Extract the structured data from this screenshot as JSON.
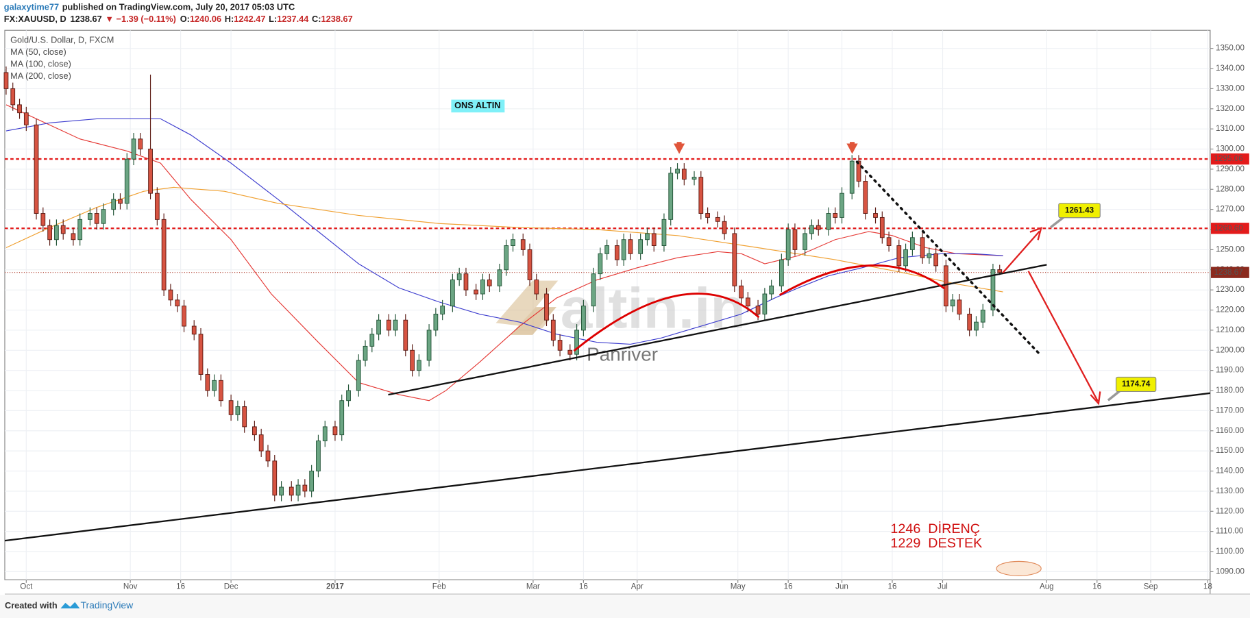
{
  "header": {
    "author": "galaxytime77",
    "published": "published on TradingView.com, July 20, 2017 05:03 UTC",
    "symbol": "FX:XAUUSD, D",
    "price": "1238.67",
    "change": "▼ −1.39 (−0.11%)",
    "ohlc": [
      {
        "key": "O:",
        "value": "1240.06"
      },
      {
        "key": "H:",
        "value": "1242.47"
      },
      {
        "key": "L:",
        "value": "1237.44"
      },
      {
        "key": "C:",
        "value": "1238.67"
      }
    ]
  },
  "footer": {
    "created": "Created with",
    "brand": "TradingView"
  },
  "chart_data": {
    "type": "candlestick",
    "legend_title": "Gold/U.S. Dollar, D, FXCM",
    "grid": true,
    "up_color": "#6ba583",
    "down_color": "#d75442",
    "up_border": "#225437",
    "down_border": "#5b1a13",
    "x": [
      -6,
      -4,
      -2,
      0,
      3,
      5,
      7,
      9,
      11,
      14,
      16,
      19,
      21,
      23,
      26,
      28,
      30,
      32,
      34,
      37,
      39,
      41,
      43,
      45,
      47,
      50,
      52,
      54,
      56,
      58,
      61,
      63,
      65,
      68,
      70,
      72,
      74,
      76,
      79,
      81,
      83,
      85,
      87,
      89,
      92,
      94,
      96,
      99,
      101,
      103,
      105,
      108,
      110,
      113,
      115,
      117,
      120,
      122,
      124,
      127,
      129,
      131,
      134,
      136,
      138,
      141,
      143,
      145,
      148,
      150,
      152,
      155,
      157,
      159,
      162,
      164,
      166,
      169,
      171,
      173,
      176,
      178,
      180,
      183,
      185,
      187,
      190,
      192,
      194,
      196,
      199,
      201,
      203,
      206,
      208,
      211,
      213,
      215,
      218,
      220,
      222,
      225,
      227,
      229,
      232,
      234,
      236,
      239,
      241,
      243,
      246,
      248,
      250,
      253,
      255,
      257,
      260,
      262,
      264,
      267,
      269,
      271,
      274,
      276,
      278,
      281,
      283,
      285,
      288,
      290
    ],
    "open": [
      1338,
      1330,
      1322,
      1318,
      1312,
      1268,
      1262,
      1255,
      1262,
      1258,
      1255,
      1265,
      1268,
      1263,
      1270,
      1275,
      1273,
      1295,
      1305,
      1300,
      1278,
      1265,
      1230,
      1225,
      1222,
      1212,
      1208,
      1188,
      1180,
      1185,
      1175,
      1168,
      1172,
      1162,
      1158,
      1150,
      1145,
      1128,
      1132,
      1128,
      1133,
      1130,
      1140,
      1155,
      1162,
      1158,
      1175,
      1180,
      1195,
      1202,
      1208,
      1215,
      1210,
      1215,
      1200,
      1190,
      1195,
      1210,
      1218,
      1222,
      1235,
      1238,
      1230,
      1228,
      1235,
      1232,
      1240,
      1252,
      1255,
      1250,
      1235,
      1228,
      1215,
      1205,
      1200,
      1198,
      1210,
      1222,
      1238,
      1248,
      1252,
      1245,
      1255,
      1248,
      1255,
      1258,
      1252,
      1265,
      1288,
      1290,
      1285,
      1286,
      1268,
      1266,
      1264,
      1258,
      1232,
      1226,
      1222,
      1218,
      1228,
      1232,
      1245,
      1260,
      1250,
      1258,
      1262,
      1260,
      1268,
      1266,
      1278,
      1294,
      1284,
      1268,
      1266,
      1256,
      1252,
      1242,
      1250,
      1256,
      1246,
      1248,
      1242,
      1222,
      1225,
      1218,
      1210,
      1214,
      1220,
      1240.06
    ],
    "high": [
      1341,
      1333,
      1325,
      1321,
      1315,
      1271,
      1265,
      1265,
      1265,
      1261,
      1268,
      1271,
      1271,
      1273,
      1278,
      1278,
      1298,
      1308,
      1308,
      1337,
      1281,
      1268,
      1233,
      1228,
      1225,
      1215,
      1211,
      1191,
      1188,
      1188,
      1178,
      1175,
      1175,
      1165,
      1161,
      1153,
      1148,
      1135,
      1135,
      1136,
      1136,
      1143,
      1158,
      1165,
      1165,
      1178,
      1183,
      1198,
      1205,
      1211,
      1218,
      1218,
      1218,
      1218,
      1203,
      1198,
      1213,
      1221,
      1225,
      1238,
      1241,
      1241,
      1233,
      1238,
      1238,
      1243,
      1255,
      1258,
      1258,
      1253,
      1238,
      1231,
      1218,
      1208,
      1203,
      1213,
      1225,
      1241,
      1251,
      1255,
      1255,
      1258,
      1258,
      1258,
      1261,
      1261,
      1268,
      1291,
      1293,
      1293,
      1289,
      1289,
      1271,
      1269,
      1267,
      1261,
      1235,
      1229,
      1225,
      1231,
      1235,
      1248,
      1263,
      1263,
      1261,
      1265,
      1265,
      1271,
      1271,
      1281,
      1297,
      1297,
      1287,
      1271,
      1269,
      1259,
      1255,
      1253,
      1259,
      1259,
      1251,
      1251,
      1245,
      1228,
      1228,
      1221,
      1217,
      1223,
      1243,
      1242.47
    ],
    "low": [
      1327,
      1319,
      1315,
      1309,
      1265,
      1259,
      1252,
      1252,
      1255,
      1252,
      1252,
      1262,
      1260,
      1260,
      1267,
      1270,
      1270,
      1292,
      1297,
      1275,
      1262,
      1227,
      1222,
      1219,
      1209,
      1205,
      1185,
      1177,
      1177,
      1172,
      1165,
      1165,
      1159,
      1155,
      1147,
      1142,
      1125,
      1125,
      1125,
      1125,
      1127,
      1127,
      1137,
      1152,
      1155,
      1155,
      1172,
      1177,
      1192,
      1199,
      1205,
      1207,
      1207,
      1197,
      1187,
      1187,
      1192,
      1207,
      1215,
      1219,
      1232,
      1227,
      1225,
      1225,
      1229,
      1229,
      1237,
      1249,
      1247,
      1232,
      1225,
      1212,
      1202,
      1197,
      1195,
      1195,
      1207,
      1219,
      1235,
      1245,
      1242,
      1242,
      1245,
      1245,
      1252,
      1249,
      1249,
      1262,
      1285,
      1282,
      1282,
      1265,
      1263,
      1261,
      1255,
      1229,
      1223,
      1219,
      1215,
      1215,
      1225,
      1229,
      1242,
      1247,
      1247,
      1255,
      1257,
      1257,
      1263,
      1263,
      1275,
      1281,
      1265,
      1263,
      1253,
      1249,
      1239,
      1239,
      1247,
      1243,
      1243,
      1239,
      1219,
      1219,
      1215,
      1207,
      1207,
      1211,
      1217,
      1237.44
    ],
    "close": [
      1330,
      1322,
      1318,
      1312,
      1268,
      1262,
      1255,
      1262,
      1258,
      1255,
      1265,
      1268,
      1263,
      1270,
      1275,
      1273,
      1295,
      1305,
      1300,
      1278,
      1265,
      1230,
      1225,
      1222,
      1212,
      1208,
      1188,
      1180,
      1185,
      1175,
      1168,
      1172,
      1162,
      1158,
      1150,
      1145,
      1128,
      1132,
      1128,
      1133,
      1130,
      1140,
      1155,
      1162,
      1158,
      1175,
      1180,
      1195,
      1202,
      1208,
      1215,
      1210,
      1215,
      1200,
      1190,
      1195,
      1210,
      1218,
      1222,
      1235,
      1238,
      1230,
      1228,
      1235,
      1232,
      1240,
      1252,
      1255,
      1250,
      1235,
      1228,
      1215,
      1205,
      1200,
      1198,
      1210,
      1222,
      1238,
      1248,
      1252,
      1245,
      1255,
      1248,
      1255,
      1258,
      1252,
      1265,
      1288,
      1290,
      1285,
      1286,
      1268,
      1266,
      1264,
      1258,
      1232,
      1226,
      1222,
      1218,
      1228,
      1232,
      1245,
      1260,
      1250,
      1258,
      1262,
      1260,
      1268,
      1266,
      1278,
      1294,
      1284,
      1268,
      1266,
      1256,
      1252,
      1242,
      1250,
      1256,
      1246,
      1248,
      1242,
      1222,
      1225,
      1218,
      1210,
      1214,
      1220,
      1240.06,
      1238.67
    ],
    "moving_averages": [
      {
        "name": "MA (50, close)",
        "color": "#e53935",
        "x": [
          -6,
          16,
          30,
          40,
          49,
          61,
          73,
          87,
          99,
          111,
          120,
          125,
          135,
          147,
          158,
          170,
          182,
          194,
          206,
          213,
          220,
          230,
          241,
          251,
          258,
          268,
          277,
          291
        ],
        "values": [
          1322,
          1305,
          1299,
          1293,
          1275,
          1255,
          1228,
          1204,
          1184,
          1178,
          1175,
          1180,
          1194,
          1212,
          1226,
          1235,
          1241,
          1246,
          1249,
          1248,
          1243,
          1247,
          1255,
          1259,
          1257,
          1251,
          1248,
          1247
        ]
      },
      {
        "name": "MA (100, close)",
        "color": "#3f3fcf",
        "x": [
          -6,
          7,
          21,
          40,
          49,
          61,
          75,
          87,
          99,
          111,
          123,
          135,
          147,
          158,
          170,
          180,
          189,
          201,
          213,
          223,
          230,
          239,
          249,
          260,
          273,
          282,
          291
        ],
        "values": [
          1309,
          1313,
          1315,
          1315,
          1307,
          1293,
          1275,
          1259,
          1243,
          1231,
          1224,
          1218,
          1214,
          1208,
          1204,
          1203,
          1206,
          1212,
          1218,
          1226,
          1231,
          1237,
          1241,
          1246,
          1248,
          1248,
          1247
        ]
      },
      {
        "name": "MA (200, close)",
        "color": "#f0a030",
        "x": [
          -6,
          7,
          21,
          35,
          44,
          59,
          75,
          99,
          123,
          147,
          170,
          194,
          218,
          241,
          260,
          277,
          291
        ],
        "values": [
          1251,
          1261,
          1271,
          1279,
          1281,
          1279,
          1273,
          1267,
          1263,
          1261,
          1260,
          1257,
          1251,
          1245,
          1239,
          1233,
          1229
        ]
      }
    ],
    "hlines": [
      {
        "value": 1295.06,
        "label": "1295.06"
      },
      {
        "value": 1260.6,
        "label": "1260.60"
      }
    ],
    "hline_color": "#e31b1b",
    "last_price": 1238.67,
    "annotations": {
      "box": "ONS ALTIN",
      "targets": [
        1261.43,
        1174.74
      ],
      "notes": [
        "1246  DİRENÇ",
        "1229  DESTEK"
      ],
      "watermark": "altin.in",
      "watermark_sub": "Panriver"
    },
    "xlim": [
      -6.4,
      352.7
    ],
    "ylim": [
      1086,
      1359
    ],
    "xticks": [
      {
        "value": 0,
        "label": "Oct"
      },
      {
        "value": 31,
        "label": "Nov"
      },
      {
        "value": 46,
        "label": "16"
      },
      {
        "value": 61,
        "label": "Dec"
      },
      {
        "value": 92,
        "label": "2017"
      },
      {
        "value": 123,
        "label": "Feb"
      },
      {
        "value": 151,
        "label": "Mar"
      },
      {
        "value": 166,
        "label": "16"
      },
      {
        "value": 182,
        "label": "Apr"
      },
      {
        "value": 212,
        "label": "May"
      },
      {
        "value": 227,
        "label": "16"
      },
      {
        "value": 243,
        "label": "Jun"
      },
      {
        "value": 258,
        "label": "16"
      },
      {
        "value": 273,
        "label": "Jul"
      },
      {
        "value": 304,
        "label": "Aug"
      },
      {
        "value": 319,
        "label": "16"
      },
      {
        "value": 335,
        "label": "Sep"
      },
      {
        "value": 352,
        "label": "18"
      }
    ],
    "yticks": [
      {
        "value": 1350,
        "label": "1350.00"
      },
      {
        "value": 1340,
        "label": "1340.00"
      },
      {
        "value": 1330,
        "label": "1330.00"
      },
      {
        "value": 1320,
        "label": "1320.00"
      },
      {
        "value": 1310,
        "label": "1310.00"
      },
      {
        "value": 1300,
        "label": "1300.00"
      },
      {
        "value": 1290,
        "label": "1290.00"
      },
      {
        "value": 1280,
        "label": "1280.00"
      },
      {
        "value": 1270,
        "label": "1270.00"
      },
      {
        "value": 1260,
        "label": "1260.00"
      },
      {
        "value": 1250,
        "label": "1250.00"
      },
      {
        "value": 1240,
        "label": "1240.00"
      },
      {
        "value": 1230,
        "label": "1230.00"
      },
      {
        "value": 1220,
        "label": "1220.00"
      },
      {
        "value": 1210,
        "label": "1210.00"
      },
      {
        "value": 1200,
        "label": "1200.00"
      },
      {
        "value": 1190,
        "label": "1190.00"
      },
      {
        "value": 1180,
        "label": "1180.00"
      },
      {
        "value": 1170,
        "label": "1170.00"
      },
      {
        "value": 1160,
        "label": "1160.00"
      },
      {
        "value": 1150,
        "label": "1150.00"
      },
      {
        "value": 1140,
        "label": "1140.00"
      },
      {
        "value": 1130,
        "label": "1130.00"
      },
      {
        "value": 1120,
        "label": "1120.00"
      },
      {
        "value": 1110,
        "label": "1110.00"
      },
      {
        "value": 1100,
        "label": "1100.00"
      },
      {
        "value": 1090,
        "label": "1090.00"
      }
    ]
  }
}
